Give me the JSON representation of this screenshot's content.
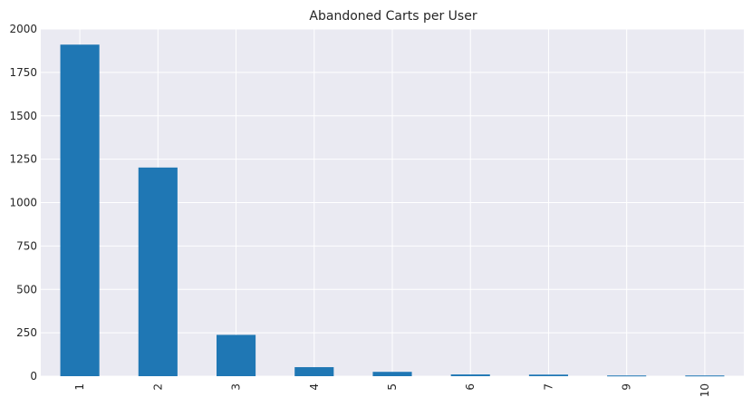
{
  "chart_data": {
    "type": "bar",
    "title": "Abandoned Carts per User",
    "xlabel": "",
    "ylabel": "",
    "categories": [
      "1",
      "2",
      "3",
      "4",
      "5",
      "6",
      "7",
      "9",
      "10"
    ],
    "values": [
      1910,
      1202,
      238,
      52,
      25,
      10,
      9,
      4,
      4
    ],
    "ylim": [
      0,
      2000
    ],
    "yticks": [
      "0",
      "250",
      "500",
      "750",
      "1000",
      "1250",
      "1500",
      "1750",
      "2000"
    ],
    "ytick_values": [
      0,
      250,
      500,
      750,
      1000,
      1250,
      1500,
      1750,
      2000
    ],
    "grid": true,
    "legend": "none",
    "colors": {
      "bar": "#1f77b4",
      "plot_background": "#eaeaf2",
      "grid": "#ffffff",
      "text": "#262626"
    }
  }
}
